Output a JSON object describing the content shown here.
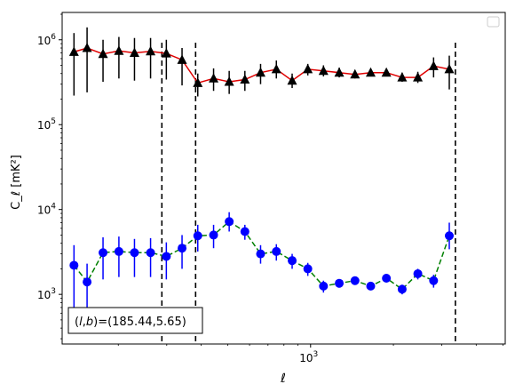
{
  "chart_data": {
    "type": "line",
    "title": "",
    "xlabel": "ℓ",
    "ylabel": "C_ℓ  [mK²]",
    "xscale": "log",
    "yscale": "log",
    "xlim": [
      125,
      5100
    ],
    "ylim": [
      260,
      2100000
    ],
    "x_ticks": [
      {
        "value": 1000,
        "base": "10",
        "exp": "3"
      }
    ],
    "y_ticks": [
      {
        "value": 1000,
        "base": "10",
        "exp": "3"
      },
      {
        "value": 10000,
        "base": "10",
        "exp": "4"
      },
      {
        "value": 100000,
        "base": "10",
        "exp": "5"
      },
      {
        "value": 1000000,
        "base": "10",
        "exp": "6"
      }
    ],
    "annotation": "(l,b)=(185.44,5.65)",
    "annotation_parts": {
      "l": "l",
      "b": "b",
      "value": "=(185.44,5.65)"
    },
    "vlines": [
      288,
      382,
      3360
    ],
    "legend": "top-right",
    "series": [
      {
        "marker": "triangle",
        "marker_color": "#000000",
        "line_color": "#e00000",
        "line_style": "solid",
        "points": [
          {
            "x": 138,
            "y": 720000,
            "lo": 220000,
            "hi": 1200000
          },
          {
            "x": 154,
            "y": 800000,
            "lo": 240000,
            "hi": 1400000
          },
          {
            "x": 176,
            "y": 680000,
            "lo": 320000,
            "hi": 1000000
          },
          {
            "x": 201,
            "y": 740000,
            "lo": 350000,
            "hi": 1080000
          },
          {
            "x": 229,
            "y": 700000,
            "lo": 330000,
            "hi": 1050000
          },
          {
            "x": 262,
            "y": 730000,
            "lo": 350000,
            "hi": 1050000
          },
          {
            "x": 299,
            "y": 690000,
            "lo": 340000,
            "hi": 1000000
          },
          {
            "x": 341,
            "y": 580000,
            "lo": 290000,
            "hi": 800000
          },
          {
            "x": 389,
            "y": 310000,
            "lo": 215000,
            "hi": 400000
          },
          {
            "x": 444,
            "y": 350000,
            "lo": 250000,
            "hi": 460000
          },
          {
            "x": 506,
            "y": 320000,
            "lo": 230000,
            "hi": 430000
          },
          {
            "x": 577,
            "y": 340000,
            "lo": 250000,
            "hi": 430000
          },
          {
            "x": 658,
            "y": 410000,
            "lo": 300000,
            "hi": 520000
          },
          {
            "x": 751,
            "y": 450000,
            "lo": 350000,
            "hi": 570000
          },
          {
            "x": 857,
            "y": 330000,
            "lo": 270000,
            "hi": 400000
          },
          {
            "x": 977,
            "y": 450000,
            "lo": 380000,
            "hi": 520000
          },
          {
            "x": 1114,
            "y": 430000,
            "lo": 370000,
            "hi": 500000
          },
          {
            "x": 1271,
            "y": 410000,
            "lo": 360000,
            "hi": 470000
          },
          {
            "x": 1450,
            "y": 390000,
            "lo": 350000,
            "hi": 440000
          },
          {
            "x": 1654,
            "y": 410000,
            "lo": 370000,
            "hi": 455000
          },
          {
            "x": 1886,
            "y": 410000,
            "lo": 370000,
            "hi": 455000
          },
          {
            "x": 2152,
            "y": 360000,
            "lo": 320000,
            "hi": 410000
          },
          {
            "x": 2454,
            "y": 360000,
            "lo": 310000,
            "hi": 420000
          },
          {
            "x": 2800,
            "y": 490000,
            "lo": 360000,
            "hi": 620000
          },
          {
            "x": 3193,
            "y": 450000,
            "lo": 260000,
            "hi": 650000
          }
        ]
      },
      {
        "marker": "circle",
        "marker_color": "#0000ff",
        "line_color": "#008000",
        "line_style": "dashed",
        "points": [
          {
            "x": 138,
            "y": 2200,
            "lo": 700,
            "hi": 3800
          },
          {
            "x": 154,
            "y": 1400,
            "lo": 500,
            "hi": 2300
          },
          {
            "x": 176,
            "y": 3100,
            "lo": 1500,
            "hi": 4700
          },
          {
            "x": 201,
            "y": 3200,
            "lo": 1600,
            "hi": 4800
          },
          {
            "x": 229,
            "y": 3100,
            "lo": 1600,
            "hi": 4500
          },
          {
            "x": 262,
            "y": 3100,
            "lo": 1600,
            "hi": 4600
          },
          {
            "x": 299,
            "y": 2800,
            "lo": 1500,
            "hi": 4100
          },
          {
            "x": 341,
            "y": 3500,
            "lo": 2000,
            "hi": 5000
          },
          {
            "x": 389,
            "y": 4900,
            "lo": 3200,
            "hi": 6600
          },
          {
            "x": 444,
            "y": 5000,
            "lo": 3500,
            "hi": 6600
          },
          {
            "x": 506,
            "y": 7200,
            "lo": 5500,
            "hi": 9300
          },
          {
            "x": 577,
            "y": 5500,
            "lo": 4400,
            "hi": 6600
          },
          {
            "x": 658,
            "y": 3000,
            "lo": 2300,
            "hi": 3800
          },
          {
            "x": 751,
            "y": 3200,
            "lo": 2500,
            "hi": 3900
          },
          {
            "x": 857,
            "y": 2500,
            "lo": 2000,
            "hi": 3000
          },
          {
            "x": 977,
            "y": 2000,
            "lo": 1650,
            "hi": 2350
          },
          {
            "x": 1114,
            "y": 1250,
            "lo": 1050,
            "hi": 1450
          },
          {
            "x": 1271,
            "y": 1350,
            "lo": 1200,
            "hi": 1500
          },
          {
            "x": 1450,
            "y": 1450,
            "lo": 1320,
            "hi": 1600
          },
          {
            "x": 1654,
            "y": 1250,
            "lo": 1130,
            "hi": 1370
          },
          {
            "x": 1886,
            "y": 1550,
            "lo": 1400,
            "hi": 1700
          },
          {
            "x": 2152,
            "y": 1150,
            "lo": 1000,
            "hi": 1300
          },
          {
            "x": 2454,
            "y": 1750,
            "lo": 1500,
            "hi": 2000
          },
          {
            "x": 2800,
            "y": 1450,
            "lo": 1200,
            "hi": 1700
          },
          {
            "x": 3193,
            "y": 4900,
            "lo": 3400,
            "hi": 7000
          }
        ]
      }
    ]
  }
}
